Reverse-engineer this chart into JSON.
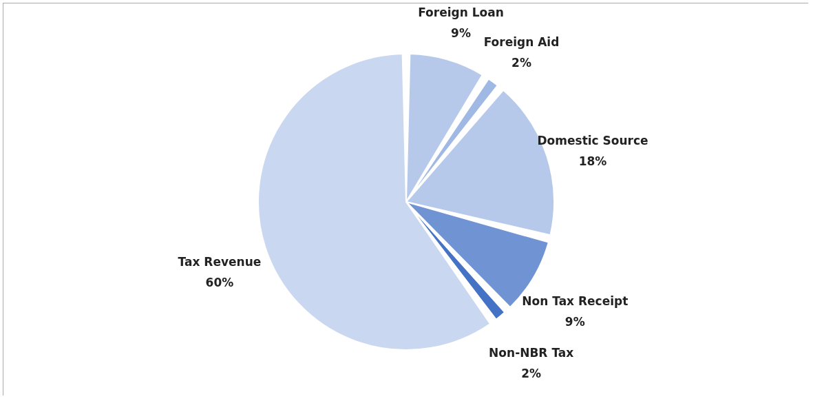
{
  "chart_data": {
    "type": "pie",
    "categories": [
      "Foreign Loan",
      "Foreign Aid",
      "Domestic Source",
      "Non Tax Receipt",
      "Non-NBR Tax",
      "Tax Revenue"
    ],
    "values": [
      9,
      2,
      18,
      9,
      2,
      60
    ],
    "value_labels": [
      "9%",
      "2%",
      "18%",
      "9%",
      "2%",
      "60%"
    ],
    "colors": [
      "#b7c9ea",
      "#9fb8e4",
      "#b7c9ea",
      "#6f93d3",
      "#4472c4",
      "#c9d7f0"
    ],
    "legend": false
  }
}
